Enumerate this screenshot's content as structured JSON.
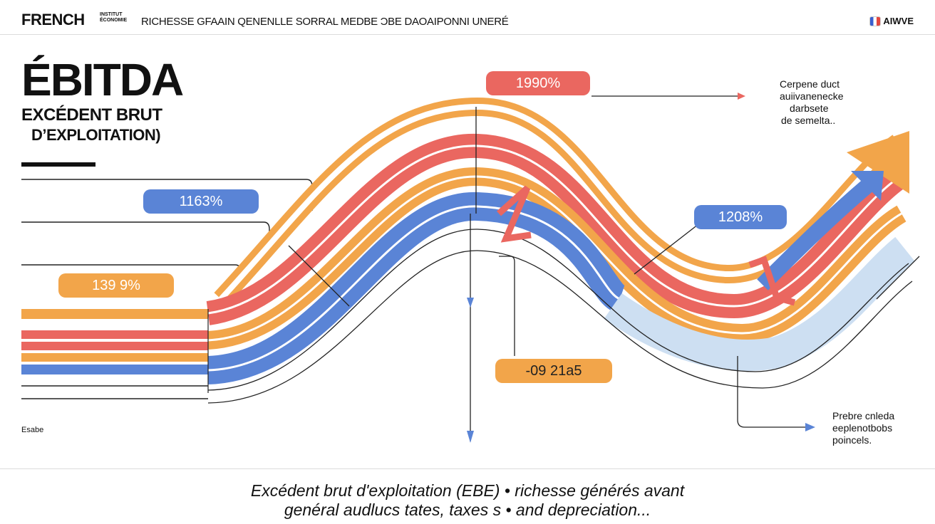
{
  "header": {
    "brand": "FRENCH",
    "brand_small": "INSTITUT ÉCONOMIE",
    "subtitle": "RICHESSE GFAAIN QENENLLE SORRAL MEDBE ƆBE DAOAIPONNI UNERÉ",
    "logo_text": "AIWVE",
    "logo_icon": "flag-icon"
  },
  "title": {
    "main": "ÉBITDA",
    "line1": "EXCÉDENT BRUT",
    "line2": "D’EXPLOITATION)"
  },
  "callouts": [
    {
      "id": "top",
      "text": "1990%",
      "color": "#ea6760"
    },
    {
      "id": "left-blue",
      "text": "1163%",
      "color": "#5a84d6"
    },
    {
      "id": "left-orange",
      "text": "139 9%",
      "color": "#f2a54a"
    },
    {
      "id": "right-blue",
      "text": "1208%",
      "color": "#5a84d6"
    },
    {
      "id": "bottom-orange",
      "text": "-09 21a5",
      "color": "#f2a54a"
    }
  ],
  "notes": {
    "top_right": [
      "Cerpene duct",
      "auiivanenecke",
      "darbsete",
      "de semelta.."
    ],
    "bottom_right": [
      "Prebre cnleda",
      "eeplenotbobs",
      "poincels."
    ]
  },
  "scale_label": "Esabe",
  "footer": {
    "line1": "Excédent brut d'exploitation (EBE) • richesse générés avant",
    "line2": "genéral audlucs tates, taxes s • and depreciation..."
  },
  "colors": {
    "orange": "#f2a54a",
    "red": "#ea6760",
    "blue": "#5a84d6",
    "light_blue": "#cddff2"
  }
}
